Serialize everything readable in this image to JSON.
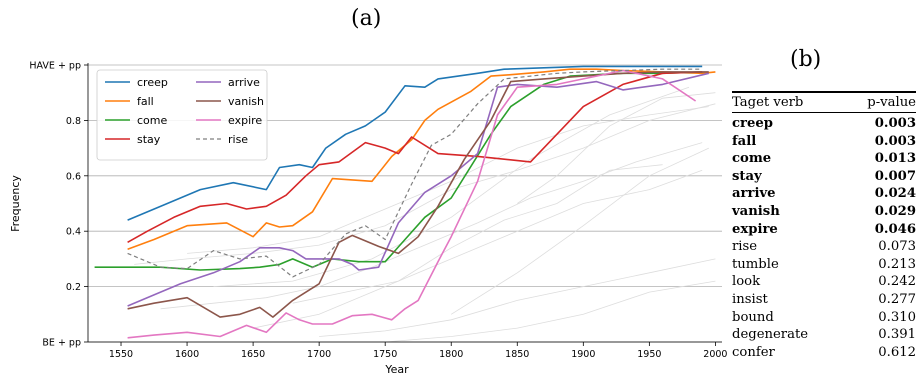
{
  "figure_labels": {
    "a": "(a)",
    "b": "(b)"
  },
  "chart_data": [
    {
      "type": "line",
      "title": "",
      "xlabel": "Year",
      "ylabel": "Frequency",
      "xlim": [
        1525,
        2005
      ],
      "ylim": [
        0,
        1
      ],
      "xticks": [
        1550,
        1600,
        1650,
        1700,
        1750,
        1800,
        1850,
        1900,
        1950,
        2000
      ],
      "xtick_labels": [
        "1550",
        "1600",
        "1650",
        "1700",
        "1750",
        "1800",
        "1850",
        "1900",
        "1950",
        "2000"
      ],
      "yticks": [
        0,
        0.2,
        0.4,
        0.6,
        0.8,
        1.0
      ],
      "ytick_labels": [
        "BE + pp",
        "0.2",
        "0.4",
        "0.6",
        "0.8",
        "HAVE + pp"
      ],
      "grid": "horizontal",
      "legend_position": "top-left",
      "colors": {
        "creep": "#1f77b4",
        "fall": "#ff7f0e",
        "come": "#2ca02c",
        "stay": "#d62728",
        "arrive": "#9467bd",
        "vanish": "#8c564b",
        "expire": "#e377c2",
        "rise": "#7f7f7f"
      },
      "series": [
        {
          "name": "creep",
          "x": [
            1555,
            1585,
            1610,
            1635,
            1660,
            1670,
            1685,
            1695,
            1705,
            1720,
            1735,
            1750,
            1765,
            1780,
            1790,
            1820,
            1840,
            1870,
            1900,
            1930,
            1960,
            1990
          ],
          "y": [
            0.44,
            0.5,
            0.55,
            0.575,
            0.55,
            0.63,
            0.64,
            0.63,
            0.7,
            0.75,
            0.78,
            0.83,
            0.925,
            0.92,
            0.95,
            0.97,
            0.985,
            0.99,
            0.995,
            0.995,
            0.995,
            0.995
          ]
        },
        {
          "name": "fall",
          "x": [
            1555,
            1575,
            1600,
            1630,
            1650,
            1660,
            1670,
            1680,
            1695,
            1710,
            1740,
            1755,
            1770,
            1780,
            1790,
            1815,
            1830,
            1845,
            1870,
            1890,
            1910,
            1930,
            1960,
            1990,
            2000
          ],
          "y": [
            0.335,
            0.37,
            0.42,
            0.43,
            0.38,
            0.43,
            0.415,
            0.42,
            0.47,
            0.59,
            0.58,
            0.67,
            0.73,
            0.8,
            0.84,
            0.905,
            0.96,
            0.965,
            0.975,
            0.985,
            0.985,
            0.98,
            0.975,
            0.97,
            0.975
          ]
        },
        {
          "name": "come",
          "x": [
            1530,
            1560,
            1580,
            1610,
            1640,
            1655,
            1670,
            1680,
            1695,
            1710,
            1730,
            1750,
            1765,
            1780,
            1800,
            1830,
            1845,
            1870,
            1890,
            1910,
            1930,
            1960,
            1990
          ],
          "y": [
            0.27,
            0.27,
            0.27,
            0.26,
            0.265,
            0.27,
            0.28,
            0.3,
            0.27,
            0.3,
            0.29,
            0.29,
            0.37,
            0.45,
            0.52,
            0.75,
            0.85,
            0.93,
            0.96,
            0.965,
            0.97,
            0.97,
            0.975
          ]
        },
        {
          "name": "stay",
          "x": [
            1555,
            1570,
            1590,
            1610,
            1630,
            1645,
            1660,
            1675,
            1690,
            1700,
            1715,
            1735,
            1750,
            1760,
            1770,
            1790,
            1820,
            1860,
            1900,
            1930,
            1960,
            1990
          ],
          "y": [
            0.36,
            0.4,
            0.45,
            0.49,
            0.5,
            0.48,
            0.49,
            0.53,
            0.6,
            0.64,
            0.65,
            0.72,
            0.7,
            0.68,
            0.74,
            0.68,
            0.67,
            0.65,
            0.85,
            0.93,
            0.97,
            0.975
          ]
        },
        {
          "name": "arrive",
          "x": [
            1555,
            1575,
            1595,
            1620,
            1640,
            1655,
            1670,
            1680,
            1690,
            1700,
            1715,
            1725,
            1730,
            1745,
            1760,
            1780,
            1800,
            1820,
            1835,
            1850,
            1880,
            1910,
            1930,
            1960,
            1995
          ],
          "y": [
            0.13,
            0.17,
            0.21,
            0.25,
            0.29,
            0.34,
            0.34,
            0.33,
            0.3,
            0.3,
            0.3,
            0.28,
            0.26,
            0.27,
            0.43,
            0.54,
            0.6,
            0.68,
            0.92,
            0.93,
            0.92,
            0.94,
            0.91,
            0.93,
            0.97
          ]
        },
        {
          "name": "vanish",
          "x": [
            1555,
            1575,
            1600,
            1625,
            1640,
            1655,
            1665,
            1680,
            1700,
            1715,
            1725,
            1745,
            1760,
            1775,
            1790,
            1810,
            1830,
            1845,
            1870,
            1900,
            1930,
            1960,
            1995
          ],
          "y": [
            0.12,
            0.14,
            0.16,
            0.09,
            0.1,
            0.125,
            0.09,
            0.15,
            0.21,
            0.36,
            0.385,
            0.345,
            0.32,
            0.38,
            0.49,
            0.66,
            0.8,
            0.94,
            0.95,
            0.96,
            0.97,
            0.975,
            0.975
          ]
        },
        {
          "name": "expire",
          "x": [
            1555,
            1575,
            1600,
            1625,
            1645,
            1660,
            1675,
            1685,
            1695,
            1710,
            1725,
            1740,
            1755,
            1765,
            1775,
            1790,
            1800,
            1820,
            1835,
            1850,
            1880,
            1910,
            1930,
            1960,
            1985
          ],
          "y": [
            0.015,
            0.025,
            0.035,
            0.02,
            0.06,
            0.035,
            0.105,
            0.08,
            0.065,
            0.065,
            0.095,
            0.1,
            0.08,
            0.12,
            0.15,
            0.29,
            0.38,
            0.58,
            0.82,
            0.92,
            0.93,
            0.96,
            0.98,
            0.95,
            0.87
          ]
        },
        {
          "name": "rise",
          "style": "dashed",
          "x": [
            1555,
            1580,
            1600,
            1620,
            1640,
            1660,
            1680,
            1700,
            1720,
            1735,
            1750,
            1760,
            1770,
            1785,
            1800,
            1820,
            1840,
            1860,
            1880,
            1900,
            1930,
            1960,
            1990
          ],
          "y": [
            0.32,
            0.27,
            0.265,
            0.33,
            0.3,
            0.31,
            0.235,
            0.28,
            0.39,
            0.42,
            0.37,
            0.47,
            0.57,
            0.71,
            0.75,
            0.86,
            0.95,
            0.96,
            0.97,
            0.975,
            0.98,
            0.985,
            0.985
          ]
        }
      ],
      "background_series": [
        {
          "x": [
            1560,
            1600,
            1650,
            1700,
            1750,
            1800,
            1850,
            1900,
            1950,
            2000
          ],
          "y": [
            0.28,
            0.3,
            0.32,
            0.35,
            0.42,
            0.55,
            0.62,
            0.7,
            0.8,
            0.86
          ]
        },
        {
          "x": [
            1580,
            1620,
            1660,
            1700,
            1740,
            1780,
            1820,
            1860,
            1900,
            1940,
            1990
          ],
          "y": [
            0.12,
            0.14,
            0.16,
            0.2,
            0.27,
            0.35,
            0.43,
            0.52,
            0.58,
            0.65,
            0.72
          ]
        },
        {
          "x": [
            1650,
            1700,
            1750,
            1800,
            1850,
            1900,
            1950,
            1990
          ],
          "y": [
            0.05,
            0.1,
            0.2,
            0.3,
            0.4,
            0.5,
            0.55,
            0.62
          ]
        },
        {
          "x": [
            1700,
            1750,
            1800,
            1850,
            1900,
            1950,
            2000
          ],
          "y": [
            0.02,
            0.04,
            0.08,
            0.15,
            0.2,
            0.25,
            0.3
          ]
        },
        {
          "x": [
            1600,
            1650,
            1700,
            1750,
            1800,
            1850,
            1900,
            1950,
            1995
          ],
          "y": [
            0.32,
            0.34,
            0.38,
            0.48,
            0.58,
            0.7,
            0.78,
            0.82,
            0.85
          ]
        },
        {
          "x": [
            1750,
            1800,
            1850,
            1900,
            1950,
            2000
          ],
          "y": [
            0.0,
            0.02,
            0.05,
            0.1,
            0.18,
            0.22
          ]
        },
        {
          "x": [
            1620,
            1680,
            1740,
            1800,
            1860,
            1920,
            1980
          ],
          "y": [
            0.2,
            0.22,
            0.3,
            0.45,
            0.66,
            0.82,
            0.92
          ]
        },
        {
          "x": [
            1800,
            1850,
            1900,
            1950,
            1995
          ],
          "y": [
            0.1,
            0.25,
            0.42,
            0.6,
            0.7
          ]
        },
        {
          "x": [
            1680,
            1720,
            1760,
            1800,
            1840,
            1880,
            1920,
            1960
          ],
          "y": [
            0.14,
            0.18,
            0.22,
            0.34,
            0.44,
            0.5,
            0.62,
            0.64
          ]
        },
        {
          "x": [
            1850,
            1880,
            1920,
            1960,
            2000
          ],
          "y": [
            0.5,
            0.6,
            0.78,
            0.88,
            0.9
          ]
        }
      ],
      "background_color": "#dddddd"
    },
    {
      "type": "table",
      "columns": [
        "Taget verb",
        "p-value"
      ],
      "rows": [
        {
          "verb": "creep",
          "p": "0.003",
          "bold": true
        },
        {
          "verb": "fall",
          "p": "0.003",
          "bold": true
        },
        {
          "verb": "come",
          "p": "0.013",
          "bold": true
        },
        {
          "verb": "stay",
          "p": "0.007",
          "bold": true
        },
        {
          "verb": "arrive",
          "p": "0.024",
          "bold": true
        },
        {
          "verb": "vanish",
          "p": "0.029",
          "bold": true
        },
        {
          "verb": "expire",
          "p": "0.046",
          "bold": true
        },
        {
          "verb": "rise",
          "p": "0.073",
          "bold": false
        },
        {
          "verb": "tumble",
          "p": "0.213",
          "bold": false
        },
        {
          "verb": "look",
          "p": "0.242",
          "bold": false
        },
        {
          "verb": "insist",
          "p": "0.277",
          "bold": false
        },
        {
          "verb": "bound",
          "p": "0.310",
          "bold": false
        },
        {
          "verb": "degenerate",
          "p": "0.391",
          "bold": false
        },
        {
          "verb": "confer",
          "p": "0.612",
          "bold": false
        }
      ]
    }
  ]
}
